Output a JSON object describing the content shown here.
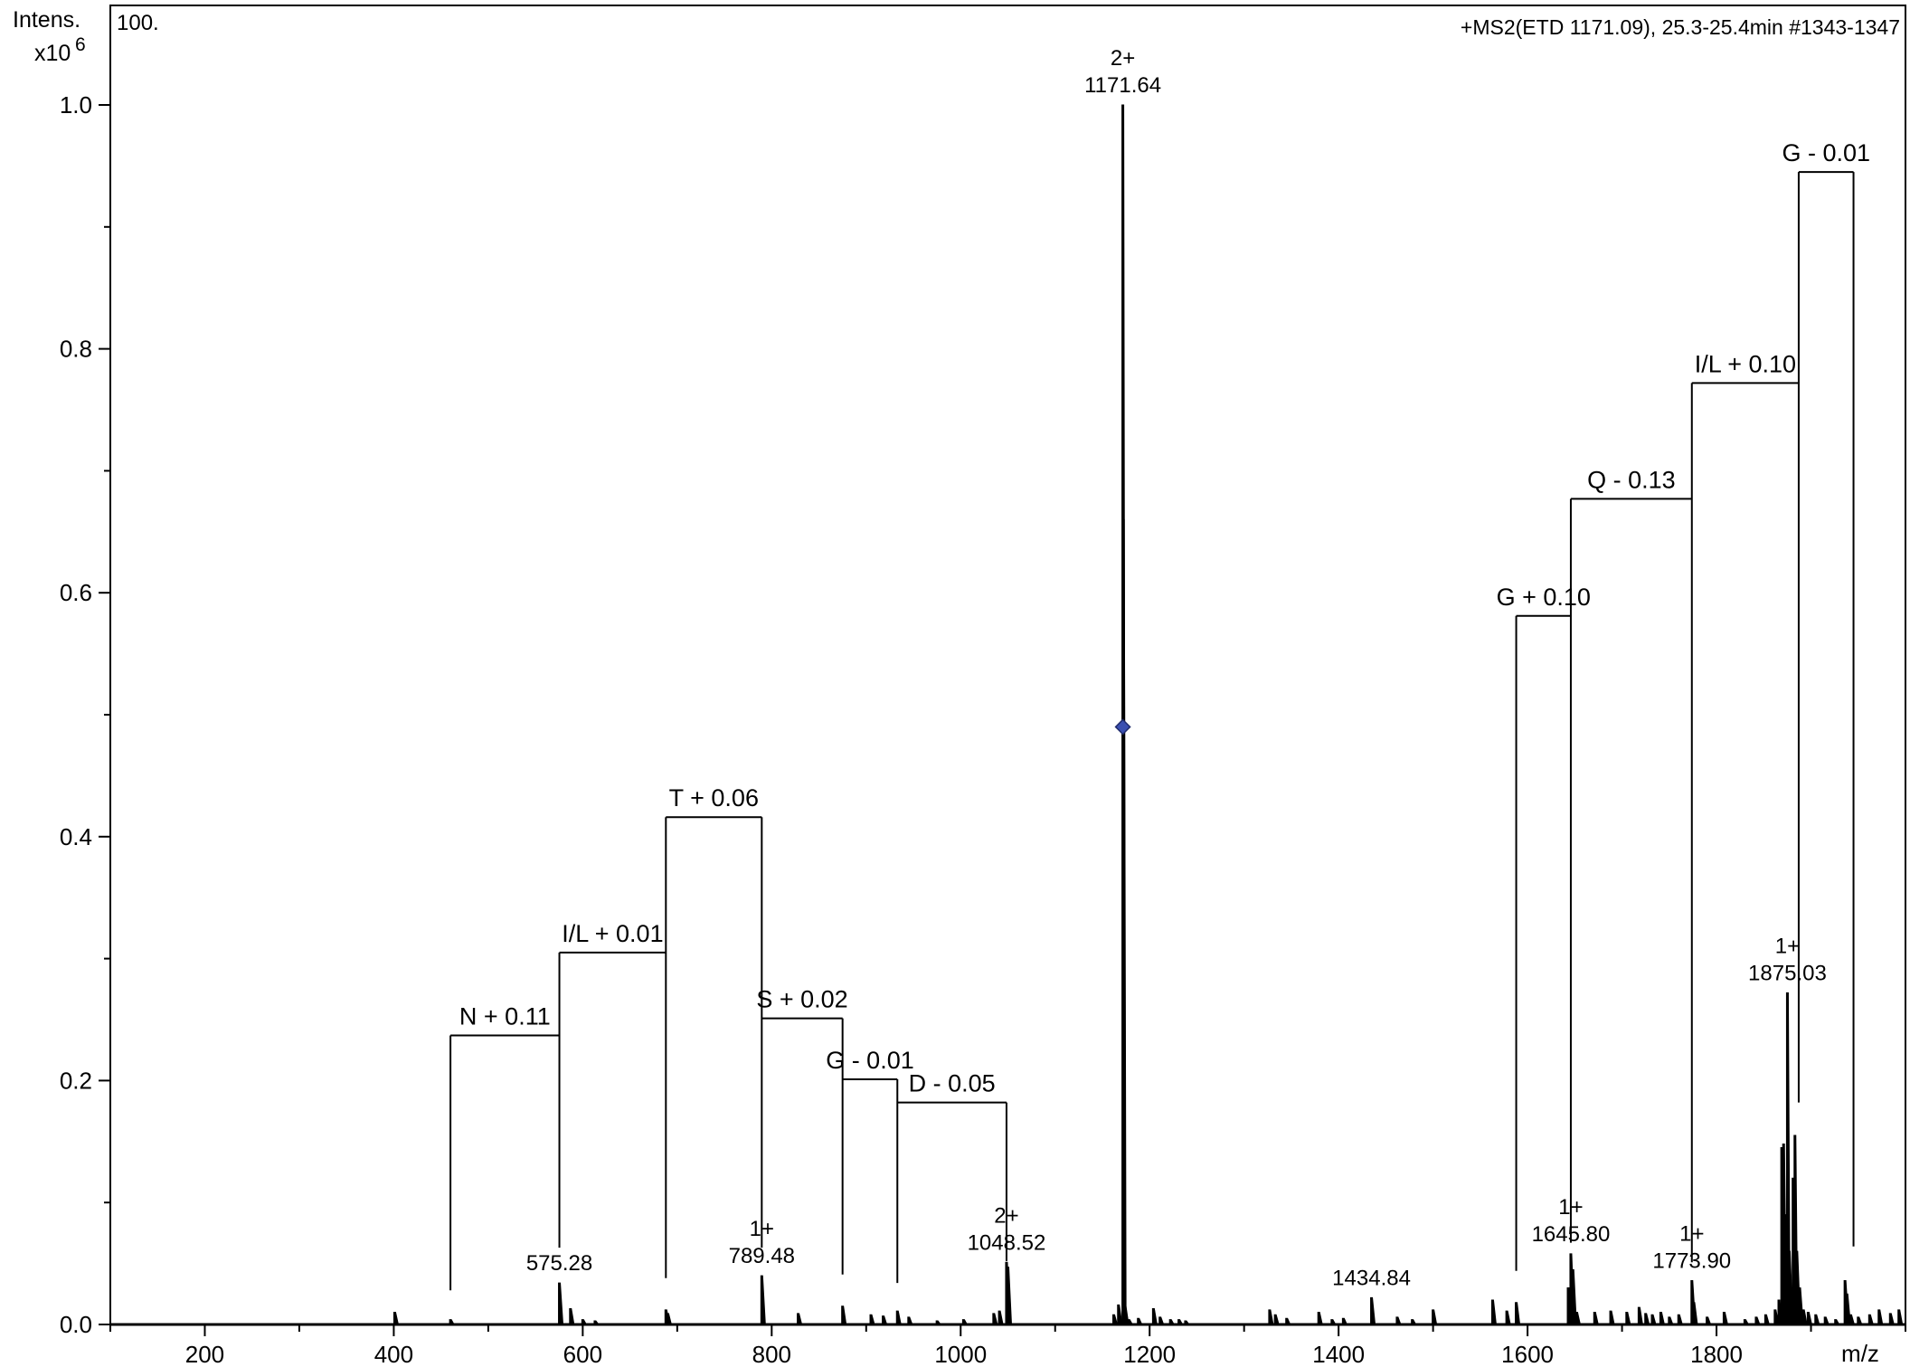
{
  "chart_data": {
    "type": "mass-spectrum",
    "title": "+MS2(ETD 1171.09), 25.3-25.4min #1343-1347",
    "scale_label": "100.",
    "ylabel": "Intens.",
    "yexponent_base": "x10",
    "yexponent_power": "6",
    "xlabel": "m/z",
    "xlim": [
      100,
      2000
    ],
    "ylim": [
      0,
      1.0
    ],
    "x_ticks": [
      200,
      400,
      600,
      800,
      1000,
      1200,
      1400,
      1600,
      1800
    ],
    "x_tick_labels": [
      "200",
      "400",
      "600",
      "800",
      "1000",
      "1200",
      "1400",
      "1600",
      "1800"
    ],
    "y_ticks": [
      0.0,
      0.2,
      0.4,
      0.6,
      0.8,
      1.0
    ],
    "y_tick_labels": [
      "0.0",
      "0.2",
      "0.4",
      "0.6",
      "0.8",
      "1.0"
    ],
    "precursor_marker": {
      "x": 1171.64,
      "y": 0.49
    },
    "peaks": [
      {
        "x": 401,
        "y": 0.01
      },
      {
        "x": 460,
        "y": 0.004
      },
      {
        "x": 575.28,
        "y": 0.034
      },
      {
        "x": 587,
        "y": 0.013
      },
      {
        "x": 600,
        "y": 0.004
      },
      {
        "x": 613,
        "y": 0.003
      },
      {
        "x": 688,
        "y": 0.012
      },
      {
        "x": 690,
        "y": 0.009
      },
      {
        "x": 789.48,
        "y": 0.04
      },
      {
        "x": 828,
        "y": 0.009
      },
      {
        "x": 875,
        "y": 0.015
      },
      {
        "x": 905,
        "y": 0.008
      },
      {
        "x": 918,
        "y": 0.007
      },
      {
        "x": 933,
        "y": 0.011
      },
      {
        "x": 945,
        "y": 0.006
      },
      {
        "x": 975,
        "y": 0.003
      },
      {
        "x": 1003,
        "y": 0.004
      },
      {
        "x": 1035,
        "y": 0.009
      },
      {
        "x": 1041,
        "y": 0.011
      },
      {
        "x": 1048.52,
        "y": 0.051
      },
      {
        "x": 1050,
        "y": 0.047
      },
      {
        "x": 1162,
        "y": 0.008
      },
      {
        "x": 1167,
        "y": 0.016
      },
      {
        "x": 1171.64,
        "y": 1.0
      },
      {
        "x": 1172.2,
        "y": 0.66
      },
      {
        "x": 1174,
        "y": 0.015
      },
      {
        "x": 1178,
        "y": 0.004
      },
      {
        "x": 1188,
        "y": 0.005
      },
      {
        "x": 1204,
        "y": 0.013
      },
      {
        "x": 1211,
        "y": 0.006
      },
      {
        "x": 1222,
        "y": 0.004
      },
      {
        "x": 1231,
        "y": 0.004
      },
      {
        "x": 1238,
        "y": 0.003
      },
      {
        "x": 1327,
        "y": 0.012
      },
      {
        "x": 1333,
        "y": 0.008
      },
      {
        "x": 1345,
        "y": 0.005
      },
      {
        "x": 1379,
        "y": 0.01
      },
      {
        "x": 1393,
        "y": 0.004
      },
      {
        "x": 1405,
        "y": 0.005
      },
      {
        "x": 1434.84,
        "y": 0.022
      },
      {
        "x": 1462,
        "y": 0.006
      },
      {
        "x": 1478,
        "y": 0.004
      },
      {
        "x": 1500,
        "y": 0.012
      },
      {
        "x": 1563,
        "y": 0.02
      },
      {
        "x": 1578,
        "y": 0.011
      },
      {
        "x": 1588,
        "y": 0.018
      },
      {
        "x": 1643,
        "y": 0.03
      },
      {
        "x": 1645.8,
        "y": 0.058
      },
      {
        "x": 1648,
        "y": 0.045
      },
      {
        "x": 1652,
        "y": 0.01
      },
      {
        "x": 1671,
        "y": 0.01
      },
      {
        "x": 1688,
        "y": 0.011
      },
      {
        "x": 1705,
        "y": 0.01
      },
      {
        "x": 1718,
        "y": 0.014
      },
      {
        "x": 1725,
        "y": 0.009
      },
      {
        "x": 1732,
        "y": 0.008
      },
      {
        "x": 1741,
        "y": 0.01
      },
      {
        "x": 1750,
        "y": 0.006
      },
      {
        "x": 1760,
        "y": 0.008
      },
      {
        "x": 1773.9,
        "y": 0.036
      },
      {
        "x": 1776,
        "y": 0.018
      },
      {
        "x": 1790,
        "y": 0.006
      },
      {
        "x": 1808,
        "y": 0.01
      },
      {
        "x": 1830,
        "y": 0.004
      },
      {
        "x": 1842,
        "y": 0.006
      },
      {
        "x": 1852,
        "y": 0.008
      },
      {
        "x": 1862,
        "y": 0.012
      },
      {
        "x": 1866,
        "y": 0.02
      },
      {
        "x": 1869,
        "y": 0.145
      },
      {
        "x": 1871,
        "y": 0.148
      },
      {
        "x": 1873,
        "y": 0.09
      },
      {
        "x": 1875.03,
        "y": 0.272
      },
      {
        "x": 1877,
        "y": 0.06
      },
      {
        "x": 1881,
        "y": 0.12
      },
      {
        "x": 1883,
        "y": 0.155
      },
      {
        "x": 1885,
        "y": 0.06
      },
      {
        "x": 1888,
        "y": 0.03
      },
      {
        "x": 1892,
        "y": 0.012
      },
      {
        "x": 1897,
        "y": 0.01
      },
      {
        "x": 1905,
        "y": 0.008
      },
      {
        "x": 1915,
        "y": 0.006
      },
      {
        "x": 1926,
        "y": 0.004
      },
      {
        "x": 1936,
        "y": 0.036
      },
      {
        "x": 1938,
        "y": 0.025
      },
      {
        "x": 1942,
        "y": 0.008
      },
      {
        "x": 1950,
        "y": 0.006
      },
      {
        "x": 1962,
        "y": 0.008
      },
      {
        "x": 1972,
        "y": 0.012
      },
      {
        "x": 1984,
        "y": 0.009
      },
      {
        "x": 1993,
        "y": 0.012
      }
    ],
    "peak_labels": [
      {
        "x": 575.28,
        "y": 0.034,
        "charge": "",
        "mz": "575.28"
      },
      {
        "x": 789.48,
        "y": 0.04,
        "charge": "1+",
        "mz": "789.48"
      },
      {
        "x": 1048.52,
        "y": 0.051,
        "charge": "2+",
        "mz": "1048.52"
      },
      {
        "x": 1171.64,
        "y": 1.0,
        "charge": "2+",
        "mz": "1171.64"
      },
      {
        "x": 1434.84,
        "y": 0.022,
        "charge": "",
        "mz": "1434.84"
      },
      {
        "x": 1645.8,
        "y": 0.058,
        "charge": "1+",
        "mz": "1645.80"
      },
      {
        "x": 1773.9,
        "y": 0.036,
        "charge": "1+",
        "mz": "1773.90"
      },
      {
        "x": 1875.03,
        "y": 0.272,
        "charge": "1+",
        "mz": "1875.03"
      }
    ],
    "ladder_top": [
      {
        "x1": 460,
        "x2": 575.28,
        "y": 0.237,
        "label": "N + 0.11"
      },
      {
        "x1": 575.28,
        "x2": 688,
        "y": 0.305,
        "label": "I/L + 0.01"
      },
      {
        "x1": 688,
        "x2": 789.48,
        "y": 0.416,
        "label": "T + 0.06"
      },
      {
        "x1": 789.48,
        "x2": 875,
        "y": 0.251,
        "label": "S + 0.02"
      },
      {
        "x1": 875,
        "x2": 933,
        "y": 0.201,
        "label": "G - 0.01"
      },
      {
        "x1": 933,
        "x2": 1048.52,
        "y": 0.182,
        "label": "D - 0.05"
      }
    ],
    "ladder_bottom": [
      {
        "x1": 1588,
        "x2": 1645.8,
        "y": 0.581,
        "label": "G + 0.10"
      },
      {
        "x1": 1645.8,
        "x2": 1773.9,
        "y": 0.677,
        "label": "Q - 0.13"
      },
      {
        "x1": 1773.9,
        "x2": 1887,
        "y": 0.772,
        "label": "I/L + 0.10"
      },
      {
        "x1": 1887,
        "x2": 1945,
        "y": 0.945,
        "label": "G - 0.01"
      }
    ],
    "ladder_verticals": [
      {
        "x": 460,
        "y_from": 0.028,
        "y_to": 0.237
      },
      {
        "x": 575.28,
        "y_from": 0.063,
        "y_to": 0.305
      },
      {
        "x": 688,
        "y_from": 0.038,
        "y_to": 0.416
      },
      {
        "x": 789.48,
        "y_from": 0.063,
        "y_to": 0.416
      },
      {
        "x": 875,
        "y_from": 0.041,
        "y_to": 0.251
      },
      {
        "x": 933,
        "y_from": 0.034,
        "y_to": 0.201
      },
      {
        "x": 1048.52,
        "y_from": 0.052,
        "y_to": 0.182
      },
      {
        "x": 1588,
        "y_from": 0.044,
        "y_to": 0.581
      },
      {
        "x": 1645.8,
        "y_from": 0.067,
        "y_to": 0.677
      },
      {
        "x": 1773.9,
        "y_from": 0.051,
        "y_to": 0.772
      },
      {
        "x": 1887,
        "y_from": 0.182,
        "y_to": 0.945
      },
      {
        "x": 1945,
        "y_from": 0.064,
        "y_to": 0.945
      }
    ]
  }
}
